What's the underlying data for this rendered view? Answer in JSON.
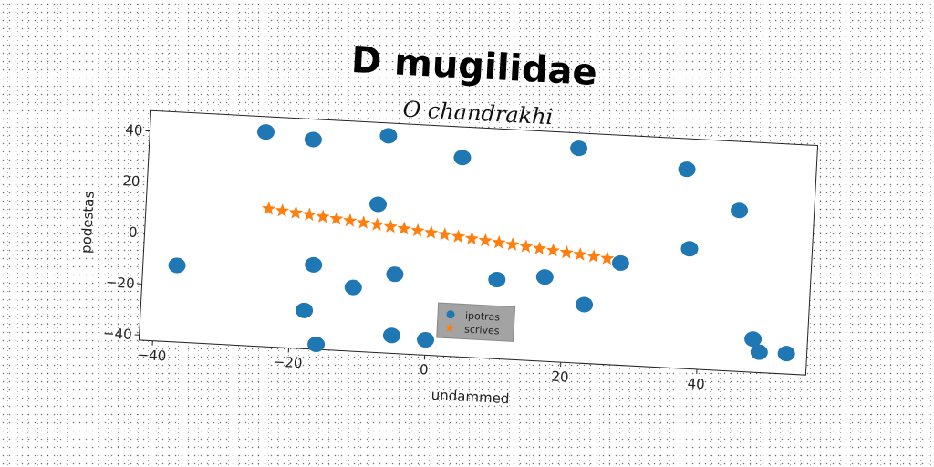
{
  "chart_data": {
    "type": "scatter",
    "title": "D mugilidae",
    "subtitle": "O chandrakhi",
    "xlabel": "undammed",
    "ylabel": "podestas",
    "xlim": [
      -42,
      56
    ],
    "ylim": [
      -42,
      48
    ],
    "xticks": [
      -40,
      -20,
      0,
      20,
      40
    ],
    "yticks": [
      -40,
      -20,
      0,
      20,
      40
    ],
    "grid": false,
    "legend_position": "lower-center",
    "series": [
      {
        "name": "ipotras",
        "marker": "circle",
        "color": "#1f77b4",
        "points": [
          [
            -37,
            -12
          ],
          [
            -25,
            42
          ],
          [
            -18,
            40
          ],
          [
            -7,
            43
          ],
          [
            4,
            36
          ],
          [
            21,
            42
          ],
          [
            37,
            36
          ],
          [
            45,
            21
          ],
          [
            -8,
            16
          ],
          [
            38,
            5
          ],
          [
            28,
            -2
          ],
          [
            -17,
            -9
          ],
          [
            -5,
            -11
          ],
          [
            10,
            -11
          ],
          [
            17,
            -9
          ],
          [
            -11,
            -17
          ],
          [
            23,
            -19
          ],
          [
            -18,
            -27
          ],
          [
            -16,
            -40
          ],
          [
            -5,
            -35
          ],
          [
            0,
            -36
          ],
          [
            48,
            -29
          ],
          [
            49,
            -34
          ],
          [
            53,
            -34
          ]
        ]
      },
      {
        "name": "scrives",
        "marker": "star",
        "color": "#ff7f0e",
        "points": [
          [
            -24,
            12
          ],
          [
            -22,
            11.5
          ],
          [
            -20,
            11
          ],
          [
            -18,
            10.5
          ],
          [
            -16,
            10
          ],
          [
            -14,
            9.5
          ],
          [
            -12,
            9
          ],
          [
            -10,
            8.5
          ],
          [
            -8,
            8
          ],
          [
            -6,
            7.5
          ],
          [
            -4,
            7
          ],
          [
            -2,
            6.5
          ],
          [
            0,
            6
          ],
          [
            2,
            5.5
          ],
          [
            4,
            5
          ],
          [
            6,
            4.5
          ],
          [
            8,
            4
          ],
          [
            10,
            3.5
          ],
          [
            12,
            3
          ],
          [
            14,
            2.5
          ],
          [
            16,
            2
          ],
          [
            18,
            1.5
          ],
          [
            20,
            1
          ],
          [
            22,
            0.5
          ],
          [
            24,
            0
          ],
          [
            26,
            -0.5
          ]
        ]
      }
    ]
  }
}
